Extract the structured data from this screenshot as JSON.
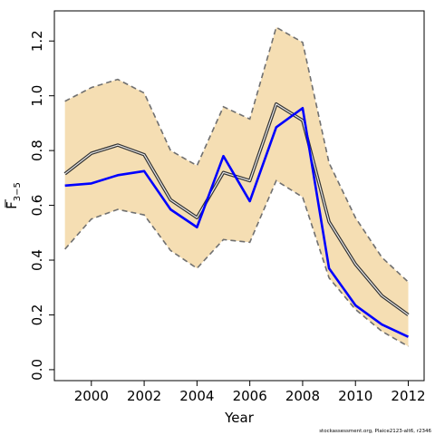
{
  "chart_data": {
    "type": "line",
    "xlabel": "Year",
    "ylabel_main": "F",
    "ylabel_sub": "3−5",
    "x": [
      1999,
      2000,
      2001,
      2002,
      2003,
      2004,
      2005,
      2006,
      2007,
      2008,
      2009,
      2010,
      2011,
      2012
    ],
    "xlim": [
      1998.6,
      2012.6
    ],
    "ylim": [
      -0.04,
      1.31
    ],
    "x_ticks": [
      2000,
      2002,
      2004,
      2006,
      2008,
      2010,
      2012
    ],
    "x_tick_labels": [
      "2000",
      "2002",
      "2004",
      "2006",
      "2008",
      "2010",
      "2012"
    ],
    "y_ticks": [
      0.0,
      0.2,
      0.4,
      0.6,
      0.8,
      1.0,
      1.2
    ],
    "y_tick_labels": [
      "0.0",
      "0.2",
      "0.4",
      "0.6",
      "0.8",
      "1.0",
      "1.2"
    ],
    "grid": false,
    "band": {
      "upper": [
        0.98,
        1.03,
        1.06,
        1.01,
        0.8,
        0.745,
        0.96,
        0.915,
        1.25,
        1.195,
        0.755,
        0.555,
        0.41,
        0.32
      ],
      "lower": [
        0.44,
        0.55,
        0.585,
        0.565,
        0.435,
        0.37,
        0.475,
        0.465,
        0.69,
        0.63,
        0.335,
        0.22,
        0.14,
        0.085
      ],
      "fill_color": "#F5DEB3",
      "edge_color": "#707070"
    },
    "series": [
      {
        "values": [
          0.715,
          0.79,
          0.82,
          0.785,
          0.62,
          0.555,
          0.72,
          0.69,
          0.97,
          0.91,
          0.54,
          0.385,
          0.27,
          0.2
        ],
        "color": "#333333",
        "style": "double"
      },
      {
        "values": [
          0.672,
          0.68,
          0.71,
          0.725,
          0.585,
          0.52,
          0.78,
          0.615,
          0.885,
          0.955,
          0.37,
          0.235,
          0.165,
          0.12
        ],
        "color": "#0000FF",
        "style": "solid"
      }
    ],
    "footer_note": "stockassessment.org, Plaice2123-alt6, r2346"
  }
}
